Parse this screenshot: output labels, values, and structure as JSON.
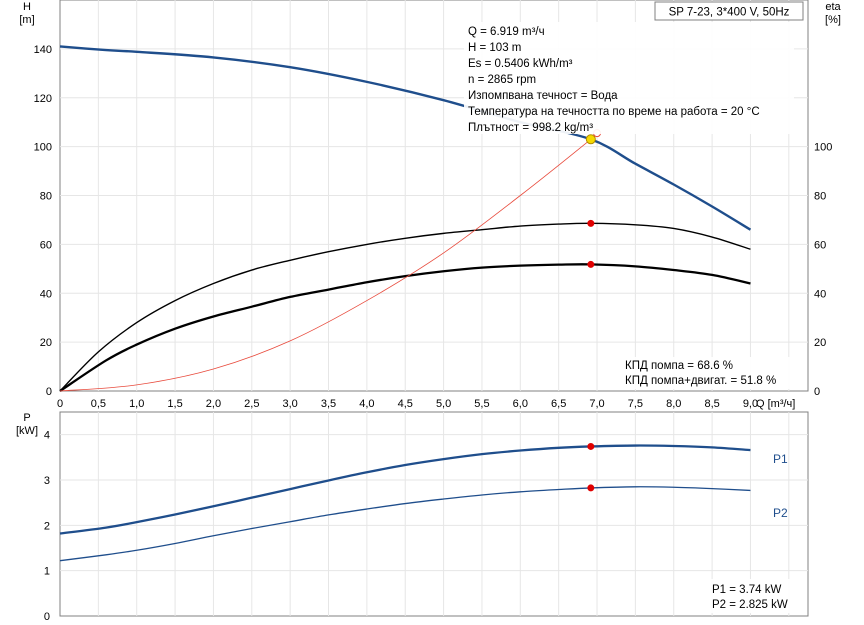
{
  "chart_data": [
    {
      "type": "line",
      "title": "SP 7-23, 3*400 V, 50Hz",
      "xlabel": "Q [m³/ч]",
      "ylabel": "H\n[m]",
      "ylabel_right": "eta\n[%]",
      "xlim": [
        0,
        9.75
      ],
      "ylim": [
        0,
        160
      ],
      "ylim_right": [
        0,
        160
      ],
      "x_ticks": [
        "0",
        "0,5",
        "1,0",
        "1,5",
        "2,0",
        "2,5",
        "3,0",
        "3,5",
        "4,0",
        "4,5",
        "5,0",
        "5,5",
        "6,0",
        "6,5",
        "7,0",
        "7,5",
        "8,0",
        "8,5",
        "9,0"
      ],
      "y_ticks": [
        0,
        20,
        40,
        60,
        80,
        100,
        120,
        140
      ],
      "y_ticks_right": [
        0,
        20,
        40,
        60,
        80,
        100
      ],
      "grid": true,
      "info_lines": [
        "Q = 6.919 m³/ч",
        "H = 103 m",
        "Es = 0.5406 kWh/m³",
        "n = 2865 rpm",
        "Изпомпвана течност = Вода",
        "Температура на течността по време на работа = 20 °C",
        "Плътност = 998.2 kg/m³"
      ],
      "bottom_notes": [
        "КПД помпа = 68.6 %",
        "КПД помпа+двигат. = 51.8 %"
      ],
      "series": [
        {
          "name": "",
          "role": "H",
          "color": "#1f4e8c",
          "x": [
            0,
            0.6,
            1.0,
            2.0,
            3.0,
            4.0,
            5.0,
            6.0,
            6.919,
            7.5,
            8.0,
            8.5,
            9.0
          ],
          "y": [
            141,
            139.5,
            138.8,
            136.5,
            132.5,
            126.5,
            119,
            110,
            103,
            93,
            84.5,
            75.5,
            66
          ]
        },
        {
          "name": "",
          "role": "eta_pump",
          "color": "#000000",
          "x": [
            0,
            0.5,
            1.0,
            1.5,
            2.0,
            2.5,
            3.0,
            3.5,
            4.0,
            4.5,
            5.0,
            5.5,
            6.0,
            6.5,
            6.919,
            7.5,
            8.0,
            8.5,
            9.0
          ],
          "y": [
            0,
            16,
            28,
            37,
            44,
            49.5,
            53.5,
            57,
            60,
            62.5,
            64.5,
            66,
            67.5,
            68.3,
            68.6,
            68,
            66.5,
            63,
            58
          ]
        },
        {
          "name": "",
          "role": "eta_total",
          "color": "#000000",
          "x": [
            0,
            0.6,
            1.0,
            1.5,
            2.0,
            2.5,
            3.0,
            3.5,
            4.0,
            4.5,
            5.0,
            5.5,
            6.0,
            6.5,
            6.919,
            7.5,
            8.0,
            8.5,
            9.0
          ],
          "y": [
            0,
            12.5,
            19,
            25.5,
            30.5,
            34.5,
            38.5,
            41.5,
            44.5,
            47,
            49,
            50.5,
            51.3,
            51.7,
            51.8,
            51,
            49.5,
            47.5,
            44
          ]
        },
        {
          "name": "",
          "role": "system",
          "color": "#e84a3c",
          "x": [
            0,
            1.0,
            2.0,
            3.0,
            4.0,
            5.0,
            6.0,
            6.919,
            7.0
          ],
          "y": [
            0,
            2.5,
            9,
            20.5,
            37,
            56.5,
            80,
            103,
            105.5
          ]
        }
      ],
      "duty_points": [
        {
          "x": 6.919,
          "y": 103,
          "color": "#f5d800"
        },
        {
          "x": 6.919,
          "y": 68.6,
          "color": "#e00000"
        },
        {
          "x": 6.919,
          "y": 51.8,
          "color": "#e00000"
        }
      ]
    },
    {
      "type": "line",
      "title": "",
      "xlabel": "",
      "ylabel": "P\n[kW]",
      "xlim": [
        0,
        9.75
      ],
      "ylim": [
        0,
        4.5
      ],
      "y_ticks": [
        0,
        1,
        2,
        3,
        4
      ],
      "grid": true,
      "bottom_notes": [
        "P1 = 3.74 kW",
        "P2 = 2.825 kW"
      ],
      "series": [
        {
          "name": "P1",
          "color": "#1f4e8c",
          "x": [
            0,
            0.6,
            1.0,
            1.5,
            2.0,
            2.5,
            3.0,
            3.5,
            4.0,
            4.5,
            5.0,
            5.5,
            6.0,
            6.5,
            6.919,
            7.5,
            8.0,
            8.5,
            9.0
          ],
          "y": [
            1.82,
            1.95,
            2.07,
            2.24,
            2.42,
            2.61,
            2.8,
            2.99,
            3.17,
            3.33,
            3.46,
            3.57,
            3.65,
            3.71,
            3.74,
            3.76,
            3.75,
            3.72,
            3.66
          ]
        },
        {
          "name": "P2",
          "color": "#1f4e8c",
          "x": [
            0,
            0.6,
            1.0,
            1.5,
            2.0,
            2.5,
            3.0,
            3.5,
            4.0,
            4.5,
            5.0,
            5.5,
            6.0,
            6.5,
            6.919,
            7.5,
            8.0,
            8.5,
            9.0
          ],
          "y": [
            1.22,
            1.35,
            1.45,
            1.6,
            1.77,
            1.93,
            2.08,
            2.23,
            2.36,
            2.48,
            2.58,
            2.67,
            2.74,
            2.79,
            2.825,
            2.85,
            2.84,
            2.81,
            2.77
          ]
        }
      ],
      "duty_points": [
        {
          "x": 6.919,
          "y": 3.74,
          "color": "#e00000"
        },
        {
          "x": 6.919,
          "y": 2.825,
          "color": "#e00000"
        }
      ]
    }
  ]
}
